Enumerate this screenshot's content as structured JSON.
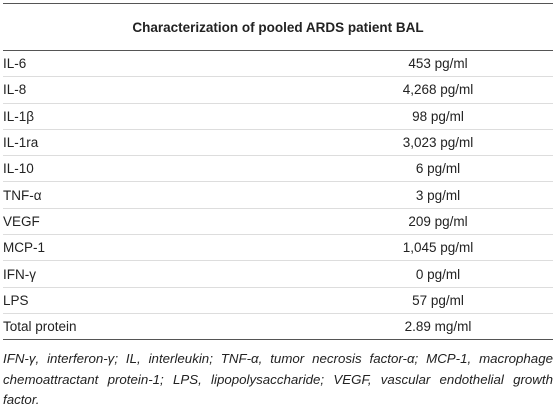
{
  "table": {
    "title": "Characterization of pooled ARDS patient BAL",
    "rows": [
      [
        "IL-6",
        "453 pg/ml"
      ],
      [
        "IL-8",
        "4,268 pg/ml"
      ],
      [
        "IL-1β",
        "98 pg/ml"
      ],
      [
        "IL-1ra",
        "3,023 pg/ml"
      ],
      [
        "IL-10",
        "6 pg/ml"
      ],
      [
        "TNF-α",
        "3 pg/ml"
      ],
      [
        "VEGF",
        "209 pg/ml"
      ],
      [
        "MCP-1",
        "1,045 pg/ml"
      ],
      [
        "IFN-γ",
        "0 pg/ml"
      ],
      [
        "LPS",
        "57 pg/ml"
      ],
      [
        "Total protein",
        "2.89 mg/ml"
      ]
    ],
    "footnote": "IFN-γ, interferon-γ; IL, interleukin; TNF-α, tumor necrosis factor-α; MCP-1, macrophage chemoattractant protein-1; LPS, lipopolysaccharide; VEGF, vascular endothelial growth factor."
  }
}
